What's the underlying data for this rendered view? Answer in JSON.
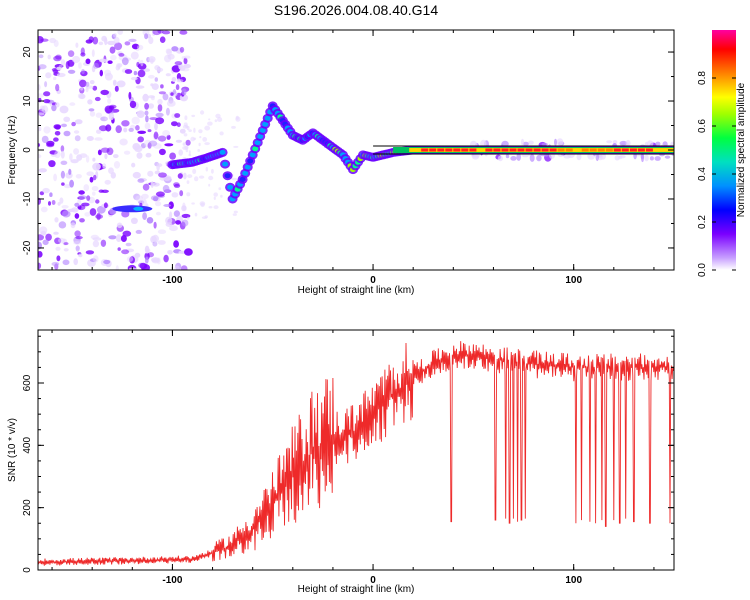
{
  "chart_data": [
    {
      "type": "heatmap",
      "title": "S196.2026.004.08.40.G14",
      "xlabel": "Height of straight line (km)",
      "ylabel": "Frequency (Hz)",
      "xlim": [
        -167,
        150
      ],
      "ylim": [
        -24.5,
        24.5
      ],
      "x_ticks": [
        -100,
        0,
        100
      ],
      "y_ticks": [
        -20,
        -10,
        0,
        10,
        20
      ],
      "colorbar": {
        "label": "Normalized spectral amplitude",
        "range": [
          0,
          1
        ],
        "ticks": [
          0,
          0.2,
          0.4,
          0.6,
          0.8
        ],
        "tick_labels": [
          "0.0",
          "0.2",
          "0.4",
          "0.6",
          "0.8"
        ],
        "colors": [
          "#ffffff",
          "#7a00ff",
          "#0000ff",
          "#00c8ff",
          "#00ff80",
          "#80ff00",
          "#ffff00",
          "#ff8000",
          "#ff0000",
          "#ff00a0"
        ]
      },
      "ridge": {
        "description_points": [
          [
            -100,
            -3
          ],
          [
            -90,
            -2.5
          ],
          [
            -82,
            -1.5
          ],
          [
            -75,
            -0.5
          ],
          [
            -70,
            -10
          ],
          [
            -65,
            -6
          ],
          [
            -60,
            -1
          ],
          [
            -55,
            4
          ],
          [
            -50,
            9
          ],
          [
            -45,
            6
          ],
          [
            -40,
            3
          ],
          [
            -35,
            2
          ],
          [
            -30,
            3.5
          ],
          [
            -25,
            2
          ],
          [
            -20,
            0.5
          ],
          [
            -15,
            -1
          ],
          [
            -10,
            -4
          ],
          [
            -5,
            -1
          ],
          [
            0,
            -1.5
          ],
          [
            10,
            -0.5
          ],
          [
            20,
            0
          ],
          [
            50,
            0
          ],
          [
            100,
            0
          ],
          [
            150,
            0
          ]
        ],
        "isolated_streak": {
          "x": [
            -130,
            -110
          ],
          "y": -12
        }
      }
    },
    {
      "type": "line",
      "xlabel": "Height of straight line (km)",
      "ylabel": "SNR (10 * v/v)",
      "xlim": [
        -167,
        150
      ],
      "ylim": [
        0,
        770
      ],
      "x_ticks": [
        -100,
        0,
        100
      ],
      "y_ticks": [
        0,
        200,
        400,
        600
      ],
      "series": [
        {
          "name": "SNR",
          "color": "#ee2a2a",
          "trend": {
            "x": [
              -167,
              -120,
              -90,
              -80,
              -70,
              -60,
              -50,
              -40,
              -30,
              -20,
              -10,
              0,
              10,
              20,
              30,
              40,
              50,
              60,
              80,
              100,
              120,
              150
            ],
            "y": [
              25,
              30,
              35,
              55,
              80,
              130,
              210,
              300,
              380,
              420,
              440,
              500,
              560,
              620,
              660,
              690,
              690,
              675,
              660,
              650,
              650,
              650
            ]
          },
          "dropouts": {
            "x": [
              39,
              61,
              66,
              68,
              70,
              72,
              74,
              76,
              101,
              104,
              108,
              111,
              114,
              116,
              120,
              123,
              126,
              130,
              138,
              148
            ],
            "y": [
              155,
              160,
              165,
              150,
              165,
              155,
              160,
              165,
              150,
              160,
              155,
              150,
              160,
              140,
              160,
              150,
              165,
              155,
              150,
              150
            ]
          },
          "noise_amplitude_note": "oscillatory fluctuation around trend"
        }
      ]
    }
  ]
}
